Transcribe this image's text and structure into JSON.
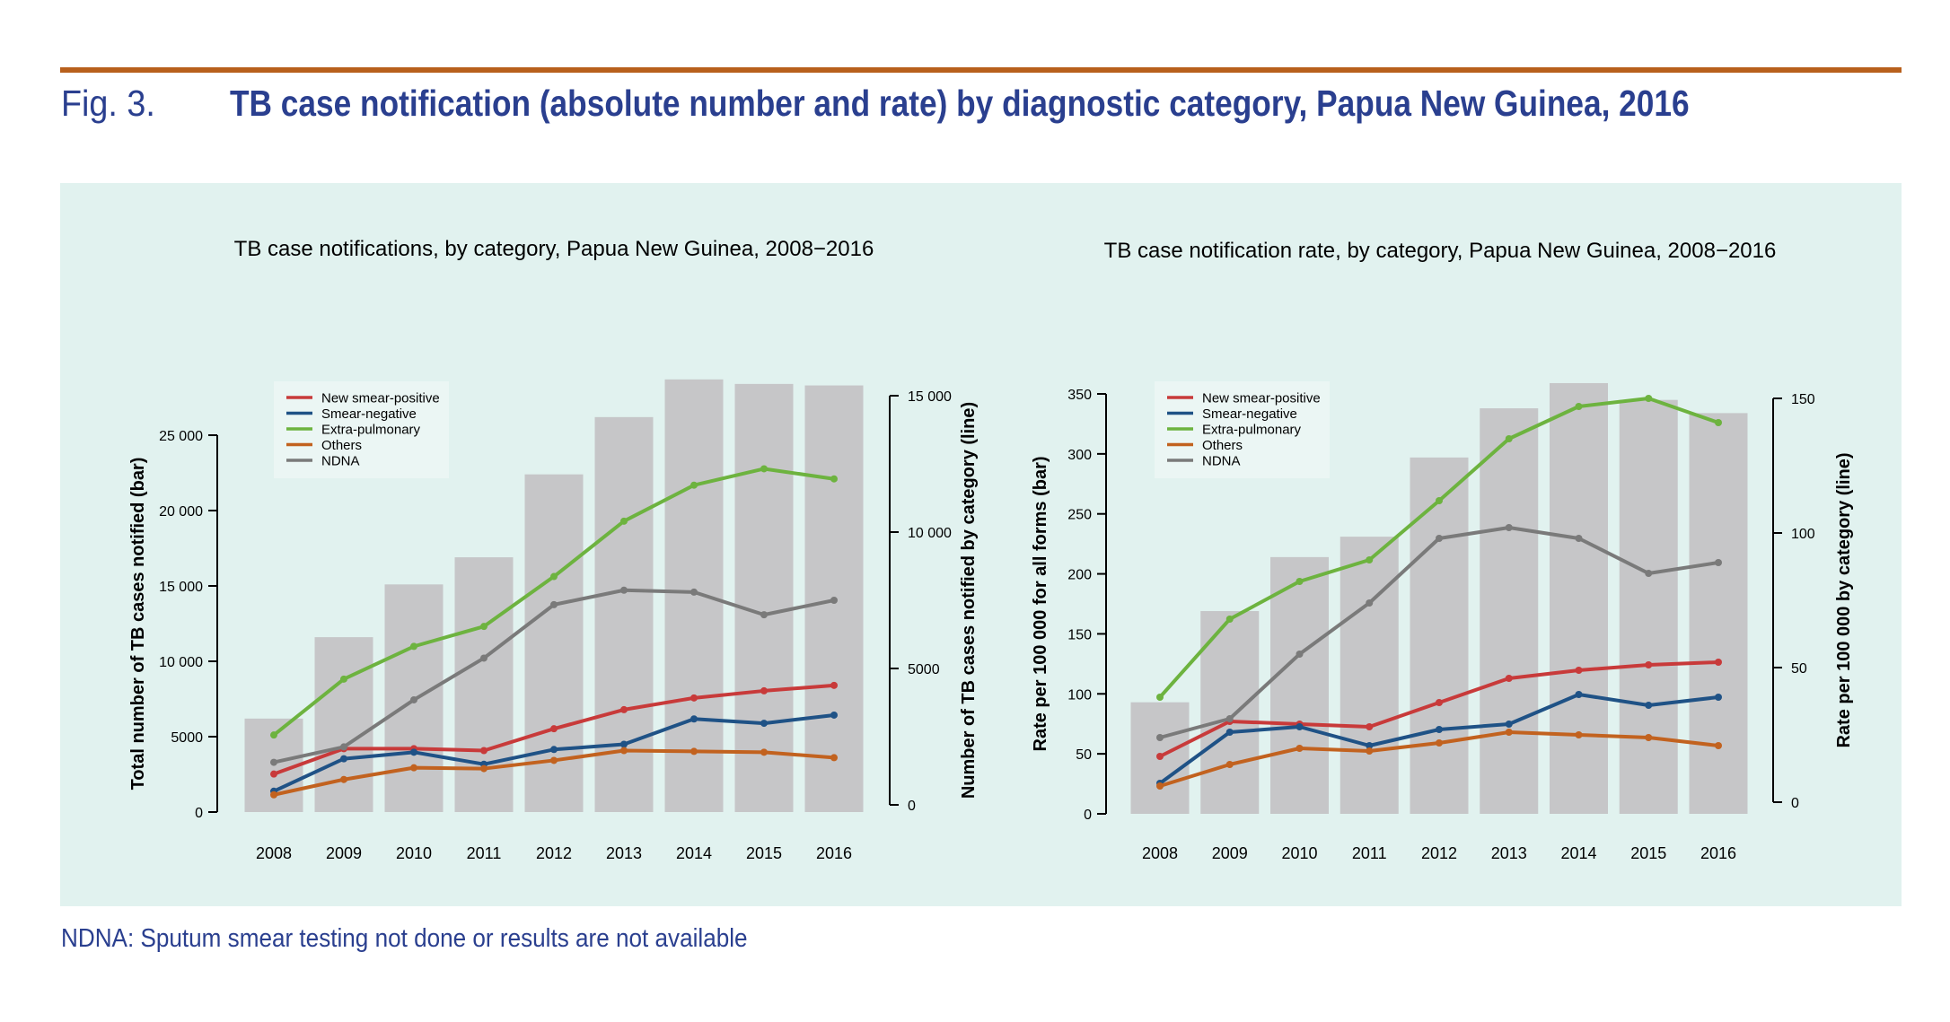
{
  "header": {
    "fig_label": "Fig. 3.",
    "title": "TB case notification (absolute number and rate) by diagnostic category, Papua New Guinea, 2016",
    "rule_color": "#b8601c",
    "text_color": "#2a3f8f"
  },
  "footnote": "NDNA: Sputum smear testing not done or results are not available",
  "colors": {
    "panel_bg": "#e1f2ef",
    "bar": "#c6c6c8",
    "new_smear_positive": "#c83a3a",
    "smear_negative": "#1f5286",
    "extra_pulmonary": "#6db33f",
    "others": "#c2621f",
    "ndna": "#7a7a7a"
  },
  "chart_data": [
    {
      "type": "bar+line",
      "title": "TB case notifications, by category, Papua New Guinea, 2008−2016",
      "categories": [
        "2008",
        "2009",
        "2010",
        "2011",
        "2012",
        "2013",
        "2014",
        "2015",
        "2016"
      ],
      "bars": {
        "name": "Total number of TB cases notified",
        "axis": "left",
        "values": [
          6200,
          11600,
          15100,
          16900,
          22400,
          26200,
          28700,
          28400,
          28300
        ]
      },
      "series": [
        {
          "name": "New smear-positive",
          "key": "new_smear_positive",
          "axis": "right",
          "values": [
            1130,
            2060,
            2060,
            1990,
            2790,
            3490,
            3920,
            4180,
            4380
          ]
        },
        {
          "name": "Smear-negative",
          "key": "smear_negative",
          "axis": "right",
          "values": [
            500,
            1690,
            1930,
            1490,
            2030,
            2220,
            3150,
            2990,
            3290
          ]
        },
        {
          "name": "Extra-pulmonary",
          "key": "extra_pulmonary",
          "axis": "right",
          "values": [
            2560,
            4610,
            5810,
            6540,
            8370,
            10400,
            11720,
            12320,
            11950
          ]
        },
        {
          "name": "Others",
          "key": "others",
          "axis": "right",
          "values": [
            370,
            930,
            1360,
            1330,
            1630,
            1990,
            1960,
            1930,
            1730
          ]
        },
        {
          "name": "NDNA",
          "key": "ndna",
          "axis": "right",
          "values": [
            1560,
            2125,
            3850,
            5380,
            7340,
            7870,
            7800,
            6970,
            7500
          ]
        }
      ],
      "ylabel": "Total number of TB cases notified (bar)",
      "ylabel_right": "Number of TB cases notified by category (line)",
      "ylim": [
        0,
        25000
      ],
      "yticks": [
        0,
        5000,
        10000,
        15000,
        20000,
        25000
      ],
      "ytick_labels": [
        "0",
        "5000",
        "10 000",
        "15 000",
        "20 000",
        "25 000"
      ],
      "ylim_right": [
        0,
        15000
      ],
      "yticks_right": [
        0,
        5000,
        10000,
        15000
      ],
      "ytick_labels_right": [
        "0",
        "5000",
        "10 000",
        "15 000"
      ],
      "legend": "top-left",
      "grid": false
    },
    {
      "type": "bar+line",
      "title": "TB case notification rate, by category, Papua New Guinea, 2008−2016",
      "categories": [
        "2008",
        "2009",
        "2010",
        "2011",
        "2012",
        "2013",
        "2014",
        "2015",
        "2016"
      ],
      "bars": {
        "name": "Rate per 100 000 for all forms",
        "axis": "left",
        "values": [
          93,
          169,
          214,
          231,
          297,
          338,
          359,
          345,
          334
        ]
      },
      "series": [
        {
          "name": "New smear-positive",
          "key": "new_smear_positive",
          "axis": "right",
          "values": [
            17,
            30,
            29,
            28,
            37,
            46,
            49,
            51,
            52
          ]
        },
        {
          "name": "Smear-negative",
          "key": "smear_negative",
          "axis": "right",
          "values": [
            7,
            26,
            28,
            21,
            27,
            29,
            40,
            36,
            39
          ]
        },
        {
          "name": "Extra-pulmonary",
          "key": "extra_pulmonary",
          "axis": "right",
          "values": [
            39,
            68,
            82,
            90,
            112,
            135,
            147,
            150,
            141
          ]
        },
        {
          "name": "Others",
          "key": "others",
          "axis": "right",
          "values": [
            6,
            14,
            20,
            19,
            22,
            26,
            25,
            24,
            21
          ]
        },
        {
          "name": "NDNA",
          "key": "ndna",
          "axis": "right",
          "values": [
            24,
            31,
            55,
            74,
            98,
            102,
            98,
            85,
            89
          ]
        }
      ],
      "ylabel": "Rate per 100 000 for all forms (bar)",
      "ylabel_right": "Rate per 100 000 by category (line)",
      "ylim": [
        0,
        350
      ],
      "yticks": [
        0,
        50,
        100,
        150,
        200,
        250,
        300,
        350
      ],
      "ytick_labels": [
        "0",
        "50",
        "100",
        "150",
        "200",
        "250",
        "300",
        "350"
      ],
      "ylim_right": [
        0,
        150
      ],
      "yticks_right": [
        0,
        50,
        100,
        150
      ],
      "ytick_labels_right": [
        "0",
        "50",
        "100",
        "150"
      ],
      "legend": "top-left",
      "grid": false
    }
  ]
}
